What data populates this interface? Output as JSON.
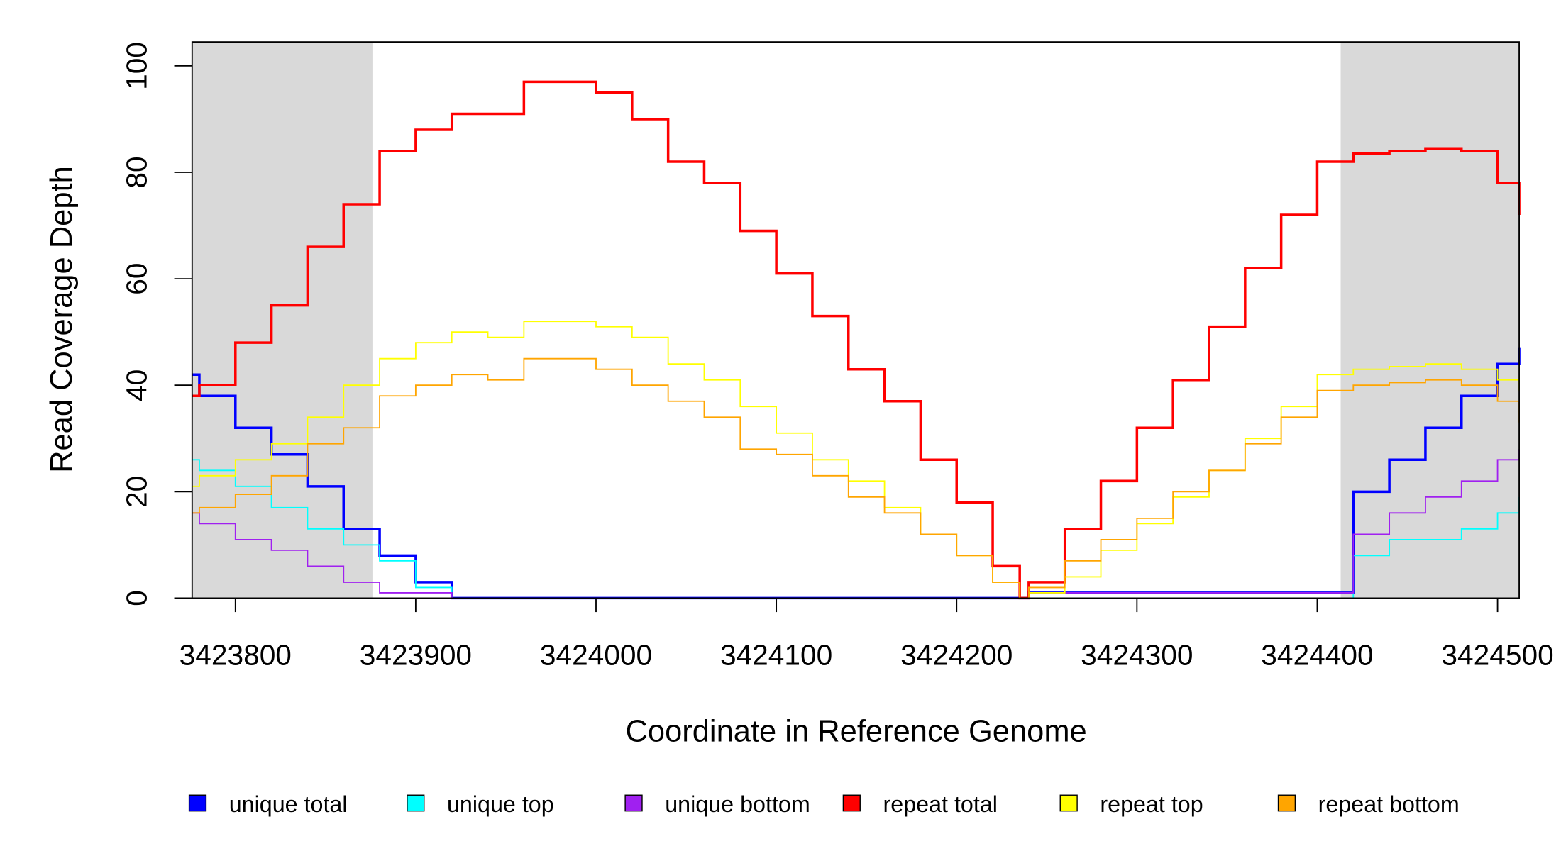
{
  "chart_data": {
    "type": "step",
    "xlabel": "Coordinate in Reference Genome",
    "ylabel": "Read Coverage Depth",
    "xlim": [
      3423776,
      3424512
    ],
    "ylim": [
      0,
      104.5
    ],
    "xticks": [
      3423800,
      3423900,
      3424000,
      3424100,
      3424200,
      3424300,
      3424400,
      3424500
    ],
    "yticks": [
      0,
      20,
      40,
      60,
      80,
      100
    ],
    "shaded_regions": [
      [
        3423776,
        3423876
      ],
      [
        3424413,
        3424512
      ]
    ],
    "shade_color": "#d9d9d9",
    "x": [
      3423776,
      3423780,
      3423800,
      3423820,
      3423840,
      3423860,
      3423880,
      3423900,
      3423920,
      3423940,
      3423960,
      3423980,
      3424000,
      3424020,
      3424040,
      3424060,
      3424080,
      3424100,
      3424120,
      3424140,
      3424160,
      3424180,
      3424200,
      3424220,
      3424235,
      3424240,
      3424260,
      3424280,
      3424300,
      3424320,
      3424340,
      3424360,
      3424380,
      3424400,
      3424420,
      3424440,
      3424460,
      3424480,
      3424500,
      3424512
    ],
    "series": [
      {
        "name": "unique total",
        "color": "#0000ff",
        "width": 2.5,
        "values": [
          42,
          38,
          32,
          27,
          21,
          13,
          8,
          3,
          0,
          0,
          0,
          0,
          0,
          0,
          0,
          0,
          0,
          0,
          0,
          0,
          0,
          0,
          0,
          0,
          0,
          1,
          1,
          1,
          1,
          1,
          1,
          1,
          1,
          1,
          20,
          26,
          32,
          38,
          44,
          47
        ]
      },
      {
        "name": "unique top",
        "color": "#00ffff",
        "width": 1.3,
        "values": [
          26,
          24,
          21,
          17,
          13,
          10,
          7,
          2,
          0,
          0,
          0,
          0,
          0,
          0,
          0,
          0,
          0,
          0,
          0,
          0,
          0,
          0,
          0,
          0,
          0,
          0,
          0,
          0,
          0,
          0,
          0,
          0,
          0,
          0,
          8,
          11,
          11,
          13,
          16,
          19
        ]
      },
      {
        "name": "unique bottom",
        "color": "#a020f0",
        "width": 1.3,
        "values": [
          16,
          14,
          11,
          9,
          6,
          3,
          1,
          1,
          0,
          0,
          0,
          0,
          0,
          0,
          0,
          0,
          0,
          0,
          0,
          0,
          0,
          0,
          0,
          0,
          0,
          1,
          1,
          1,
          1,
          1,
          1,
          1,
          1,
          1,
          12,
          16,
          19,
          22,
          26,
          28
        ]
      },
      {
        "name": "repeat total",
        "color": "#ff0000",
        "width": 2.5,
        "values": [
          38,
          40,
          48,
          55,
          66,
          74,
          84,
          88,
          91,
          91,
          97,
          97,
          95,
          90,
          82,
          78,
          69,
          61,
          53,
          43,
          37,
          26,
          18,
          6,
          0,
          3,
          13,
          22,
          32,
          41,
          51,
          62,
          72,
          82,
          83.5,
          84,
          84.5,
          84,
          78,
          72
        ]
      },
      {
        "name": "repeat top",
        "color": "#ffff00",
        "width": 1.3,
        "values": [
          21,
          23,
          26,
          29,
          34,
          40,
          45,
          48,
          50,
          49,
          52,
          52,
          51,
          49,
          44,
          41,
          36,
          31,
          26,
          22,
          17,
          12,
          8,
          3,
          0,
          1,
          4,
          9,
          14,
          19,
          24,
          30,
          36,
          42,
          43,
          43.5,
          44,
          43,
          41,
          39
        ]
      },
      {
        "name": "repeat bottom",
        "color": "#ffa500",
        "width": 1.3,
        "values": [
          16,
          17,
          19.5,
          23,
          29,
          32,
          38,
          40,
          42,
          41,
          45,
          45,
          43,
          40,
          37,
          34,
          28,
          27,
          23,
          19,
          16,
          12,
          8,
          3,
          0,
          2,
          7,
          11,
          15,
          20,
          24,
          29,
          34,
          39,
          40,
          40.5,
          41,
          40,
          37,
          33
        ]
      }
    ]
  }
}
